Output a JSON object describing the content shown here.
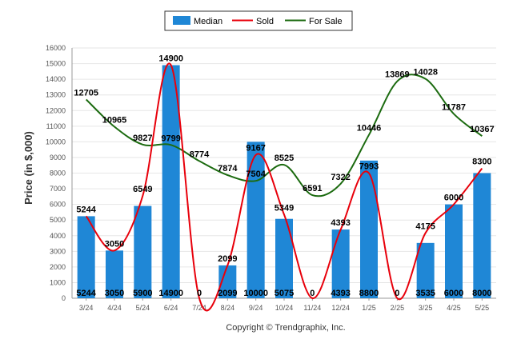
{
  "chart_data": {
    "type": "bar",
    "ylabel": "Price (in $,000)",
    "ylim": [
      0,
      16000
    ],
    "yticks": [
      0,
      1000,
      2000,
      3000,
      4000,
      5000,
      6000,
      7000,
      8000,
      9000,
      10000,
      11000,
      12000,
      13000,
      14000,
      15000,
      16000
    ],
    "grid": true,
    "legend_position": "top-center",
    "categories": [
      "3/24",
      "4/24",
      "5/24",
      "6/24",
      "7/24",
      "8/24",
      "9/24",
      "10/24",
      "11/24",
      "12/24",
      "1/25",
      "2/25",
      "3/25",
      "4/25",
      "5/25"
    ],
    "series": [
      {
        "name": "Median",
        "kind": "bar",
        "color": "#1f87d6",
        "values": [
          5244,
          3050,
          5900,
          14900,
          0,
          2099,
          10000,
          5075,
          0,
          4393,
          8800,
          0,
          3535,
          6000,
          8000
        ]
      },
      {
        "name": "Sold",
        "kind": "line",
        "color": "#e8000b",
        "values": [
          5244,
          3050,
          6549,
          14900,
          0,
          2099,
          9167,
          5349,
          0,
          4393,
          7993,
          0,
          4175,
          6000,
          8300
        ]
      },
      {
        "name": "For Sale",
        "kind": "line",
        "color": "#1c6b10",
        "values": [
          12705,
          10965,
          9827,
          9799,
          8774,
          7874,
          7504,
          8525,
          6591,
          7322,
          10446,
          13869,
          14028,
          11787,
          10367
        ]
      }
    ]
  },
  "footer": {
    "copyright": "Copyright © Trendgraphix, Inc."
  }
}
